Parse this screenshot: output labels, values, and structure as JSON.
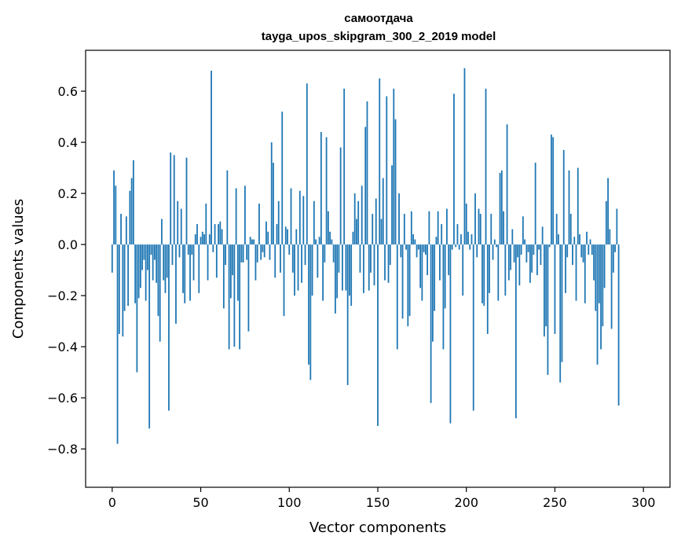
{
  "chart_data": {
    "type": "bar",
    "title_line1": "самоотдача",
    "title_line2": "tayga_upos_skipgram_300_2_2019 model",
    "xlabel": "Vector components",
    "ylabel": "Components values",
    "xlim": [
      -15,
      315
    ],
    "ylim": [
      -0.95,
      0.76
    ],
    "xticks": [
      0,
      50,
      100,
      150,
      200,
      250,
      300
    ],
    "xtick_labels": [
      "0",
      "50",
      "100",
      "150",
      "200",
      "250",
      "300"
    ],
    "yticks": [
      -0.8,
      -0.6,
      -0.4,
      -0.2,
      0.0,
      0.2,
      0.4,
      0.6
    ],
    "ytick_labels": [
      "−0.8",
      "−0.6",
      "−0.4",
      "−0.2",
      "0.0",
      "0.2",
      "0.4",
      "0.6"
    ],
    "bar_color": "#1f77b4",
    "values": [
      -0.11,
      0.29,
      0.23,
      -0.78,
      -0.35,
      0.12,
      -0.36,
      -0.26,
      0.11,
      -0.24,
      0.21,
      0.26,
      0.33,
      -0.23,
      -0.5,
      -0.21,
      -0.17,
      -0.1,
      -0.06,
      -0.22,
      -0.1,
      -0.72,
      -0.04,
      -0.14,
      -0.06,
      -0.15,
      -0.28,
      -0.38,
      0.1,
      -0.14,
      -0.19,
      -0.13,
      -0.65,
      0.36,
      -0.08,
      0.35,
      -0.31,
      0.17,
      -0.05,
      0.14,
      -0.19,
      -0.23,
      0.34,
      -0.04,
      -0.22,
      -0.04,
      -0.14,
      0.04,
      0.08,
      -0.19,
      0.03,
      0.05,
      0.04,
      0.16,
      -0.14,
      0.04,
      0.68,
      -0.03,
      0.08,
      -0.13,
      0.08,
      0.09,
      0.06,
      -0.25,
      -0.08,
      0.29,
      -0.41,
      -0.21,
      -0.12,
      -0.4,
      0.22,
      -0.22,
      -0.41,
      -0.07,
      -0.07,
      0.23,
      -0.06,
      -0.34,
      0.03,
      0.02,
      0.02,
      -0.14,
      -0.07,
      0.16,
      -0.06,
      -0.03,
      -0.05,
      0.09,
      0.05,
      -0.06,
      0.4,
      0.32,
      -0.13,
      0.08,
      0.17,
      -0.11,
      0.52,
      -0.28,
      0.07,
      0.06,
      -0.04,
      0.22,
      -0.11,
      -0.2,
      0.06,
      -0.18,
      0.21,
      -0.15,
      0.19,
      -0.08,
      0.63,
      -0.47,
      -0.53,
      -0.2,
      0.17,
      0.02,
      -0.13,
      0.03,
      0.44,
      -0.22,
      -0.07,
      0.42,
      0.13,
      0.05,
      0.02,
      -0.07,
      -0.27,
      -0.21,
      -0.11,
      0.38,
      -0.18,
      0.61,
      -0.18,
      -0.55,
      -0.2,
      -0.24,
      0.05,
      0.2,
      0.1,
      0.17,
      -0.11,
      0.23,
      -0.19,
      0.46,
      0.56,
      -0.18,
      -0.11,
      0.12,
      -0.16,
      0.18,
      -0.71,
      0.65,
      0.1,
      0.26,
      -0.14,
      0.58,
      -0.15,
      -0.08,
      0.31,
      0.61,
      0.49,
      -0.41,
      0.2,
      -0.05,
      -0.29,
      0.12,
      -0.02,
      -0.32,
      -0.28,
      0.13,
      0.04,
      0.02,
      -0.05,
      -0.02,
      -0.17,
      -0.22,
      -0.03,
      -0.04,
      -0.12,
      0.13,
      -0.62,
      -0.38,
      -0.26,
      0.03,
      0.13,
      -0.14,
      0.08,
      -0.41,
      -0.25,
      0.14,
      -0.12,
      -0.7,
      -0.02,
      0.59,
      -0.01,
      0.08,
      -0.02,
      0.04,
      -0.2,
      0.69,
      0.16,
      0.05,
      -0.02,
      0.04,
      -0.65,
      0.2,
      -0.05,
      0.14,
      0.12,
      -0.23,
      -0.24,
      0.61,
      -0.35,
      -0.19,
      0.12,
      -0.06,
      0.02,
      -0.01,
      -0.22,
      0.28,
      0.29,
      0.13,
      -0.2,
      0.47,
      -0.14,
      -0.1,
      0.06,
      -0.07,
      -0.68,
      -0.05,
      -0.16,
      -0.04,
      0.11,
      0.02,
      -0.07,
      -0.03,
      -0.15,
      -0.11,
      -0.04,
      0.32,
      -0.12,
      -0.02,
      -0.08,
      0.07,
      -0.36,
      -0.32,
      -0.51,
      -0.01,
      0.43,
      0.42,
      -0.35,
      0.12,
      0.04,
      -0.54,
      -0.46,
      0.37,
      -0.19,
      -0.05,
      0.29,
      0.12,
      -0.08,
      0.03,
      -0.22,
      0.3,
      0.04,
      -0.05,
      -0.07,
      -0.23,
      0.05,
      -0.04,
      0.02,
      -0.04,
      -0.14,
      -0.26,
      -0.47,
      -0.23,
      -0.41,
      -0.32,
      -0.17,
      0.17,
      0.26,
      0.06,
      -0.33,
      -0.11,
      -0.03,
      0.14,
      -0.63
    ]
  }
}
